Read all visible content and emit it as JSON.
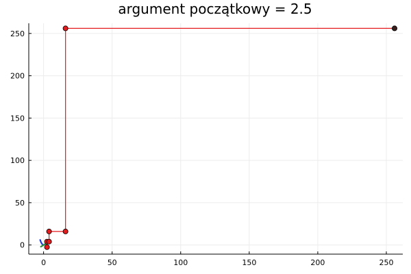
{
  "chart_data": {
    "type": "line",
    "title": "argument początkowy = 2.5",
    "xlabel": "",
    "ylabel": "",
    "xlim": [
      -10.8,
      262.0
    ],
    "ylim": [
      -10.8,
      262.0
    ],
    "x_ticks": [
      0,
      50,
      100,
      150,
      200,
      250
    ],
    "y_ticks": [
      0,
      50,
      100,
      150,
      200,
      250
    ],
    "grid": true,
    "legend": "none",
    "series": [
      {
        "kind": "curve",
        "color": "#1f3bd6",
        "x": [
          -2.5,
          -1.8,
          -1.1,
          -0.4,
          0.2
        ],
        "y": [
          6.0,
          3.0,
          1.2,
          0.2,
          0.1
        ]
      },
      {
        "kind": "curve",
        "color": "#2e8b3a",
        "x": [
          -2.0,
          2.5
        ],
        "y": [
          -2.0,
          2.5
        ]
      },
      {
        "kind": "cobweb",
        "color": "#e41a1c",
        "x": [
          2.5,
          2.5,
          4.0,
          4.0,
          16.0,
          16.0,
          256.0
        ],
        "y": [
          0.0,
          4.0,
          4.0,
          16.0,
          16.0,
          256.0,
          256.0
        ]
      }
    ],
    "points": [
      {
        "x": 2.5,
        "y": -2.5,
        "color": "#e41a1c"
      },
      {
        "x": 2.5,
        "y": 4.0,
        "color": "#e41a1c"
      },
      {
        "x": 4.0,
        "y": 4.0,
        "color": "#e41a1c"
      },
      {
        "x": 4.0,
        "y": 16.0,
        "color": "#e41a1c"
      },
      {
        "x": 16.0,
        "y": 16.0,
        "color": "#e41a1c"
      },
      {
        "x": 16.0,
        "y": 256.0,
        "color": "#e41a1c"
      },
      {
        "x": 256.0,
        "y": 256.0,
        "color": "#3a1f1f"
      }
    ]
  }
}
